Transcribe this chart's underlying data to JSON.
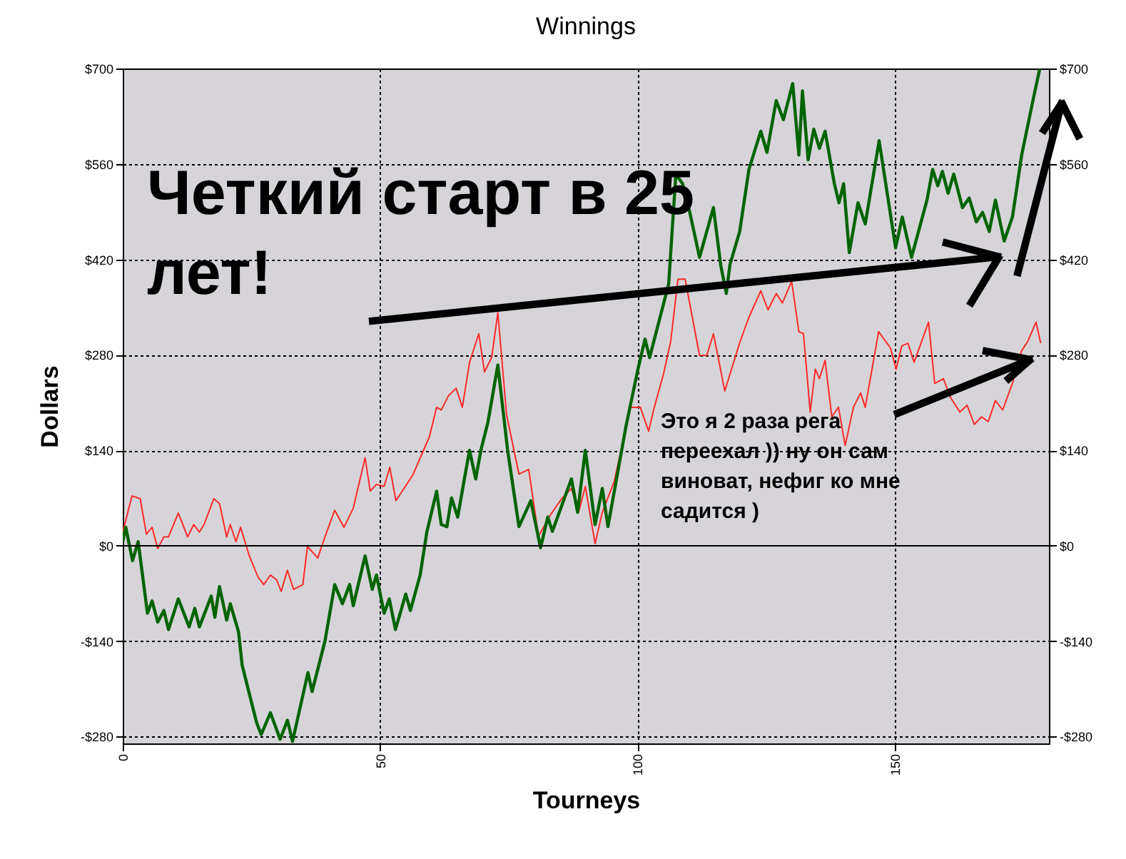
{
  "chart_data": {
    "type": "line",
    "title": "Winnings",
    "xlabel": "Tourneys",
    "ylabel": "Dollars",
    "annotations": [
      "Четкий старт в 25 лет!",
      "Это я 2 раза рега переехал )) ну он сам виноват, нефиг ко мне садится )"
    ],
    "xlim": [
      0,
      180
    ],
    "xticks": [
      0,
      50,
      100,
      150
    ],
    "ylim": [
      -290,
      700
    ],
    "yticks": [
      {
        "value": -280,
        "label": "-$280"
      },
      {
        "value": -140,
        "label": "-$140"
      },
      {
        "value": 0,
        "label": "$0"
      },
      {
        "value": 140,
        "label": "$140"
      },
      {
        "value": 280,
        "label": "$280"
      },
      {
        "value": 420,
        "label": "$420"
      },
      {
        "value": 560,
        "label": "$560"
      },
      {
        "value": 700,
        "label": "$700"
      }
    ],
    "y2lim": [
      -290,
      700
    ],
    "y2ticks": [
      {
        "value": -280,
        "label": "-$280"
      },
      {
        "value": -140,
        "label": "-$140"
      },
      {
        "value": 0,
        "label": "$0"
      },
      {
        "value": 140,
        "label": "$140"
      },
      {
        "value": 280,
        "label": "$280"
      },
      {
        "value": 420,
        "label": "$420"
      },
      {
        "value": 560,
        "label": "$560"
      },
      {
        "value": 700,
        "label": "$700"
      }
    ],
    "grid": true,
    "ref_lines": [
      {
        "axis": "y",
        "value": 0,
        "color": "#000000",
        "line_style": "solid"
      }
    ],
    "series": [
      {
        "color": "#ff2a2a",
        "x": [
          0,
          1.8,
          3.4,
          4.6,
          5.7,
          6.8,
          8,
          8.9,
          10.8,
          12.6,
          13.8,
          14.9,
          15.8,
          17.7,
          18.8,
          20.2,
          20.9,
          22,
          22.9,
          24.6,
          26.3,
          27.4,
          28.7,
          29.9,
          30.8,
          32,
          33.2,
          35,
          35.9,
          37.9,
          39.3,
          41.2,
          43,
          44.8,
          47.1,
          48.1,
          49.3,
          50.8,
          51.9,
          53.1,
          56.4,
          59.6,
          61,
          61.9,
          63.3,
          64.8,
          66,
          67.4,
          69.2,
          70.3,
          71.7,
          72.9,
          74.6,
          77,
          78.9,
          80.8,
          83.1,
          85.4,
          87.2,
          88.6,
          89.9,
          91.8,
          93.2,
          95.5,
          98.7,
          100.6,
          102.2,
          103.3,
          105.1,
          106.5,
          107.9,
          109.3,
          112.1,
          113.5,
          114.8,
          117,
          120,
          121.7,
          124,
          125.4,
          127,
          128.2,
          130,
          131.4,
          132.3,
          133.6,
          134.6,
          135.4,
          136.5,
          137.8,
          139.1,
          140.4,
          142,
          143.4,
          144.3,
          146.9,
          149.2,
          150.3,
          151.4,
          152.6,
          153.8,
          156.6,
          157.8,
          159.5,
          160.9,
          162.7,
          164.1,
          165.5,
          166.9,
          168.2,
          169.6,
          171,
          172.9,
          174.7,
          175.9,
          177.5,
          178.4
        ],
        "values": [
          20,
          73,
          69,
          17,
          27,
          -4,
          13,
          13,
          48,
          13,
          31,
          20,
          31,
          69,
          62,
          13,
          31,
          6,
          27,
          -15,
          -46,
          -57,
          -43,
          -50,
          -67,
          -36,
          -64,
          -57,
          -1,
          -18,
          13,
          52,
          27,
          55,
          129,
          80,
          90,
          87,
          115,
          66,
          104,
          160,
          203,
          199,
          220,
          231,
          203,
          269,
          311,
          255,
          276,
          342,
          192,
          105,
          112,
          14,
          45,
          70,
          84,
          49,
          87,
          3,
          49,
          94,
          203,
          203,
          168,
          203,
          252,
          300,
          391,
          391,
          279,
          279,
          311,
          227,
          300,
          335,
          374,
          346,
          370,
          356,
          388,
          314,
          311,
          196,
          259,
          245,
          272,
          189,
          203,
          147,
          203,
          224,
          203,
          314,
          290,
          259,
          293,
          297,
          269,
          328,
          238,
          245,
          217,
          196,
          206,
          178,
          189,
          182,
          213,
          199,
          238,
          286,
          300,
          328,
          297
        ]
      },
      {
        "color": "#006400",
        "x": [
          0,
          0.6,
          1.9,
          3,
          4.8,
          5.7,
          6.8,
          8,
          8.9,
          10.8,
          12.9,
          14,
          14.9,
          17.2,
          17.9,
          18.8,
          20.2,
          20.9,
          22.5,
          23.2,
          26,
          26.9,
          28.7,
          30.6,
          32,
          33,
          36,
          36.8,
          39.3,
          41.2,
          42.7,
          44.1,
          44.8,
          47.1,
          48.5,
          49.3,
          50.8,
          51.8,
          53,
          55,
          55.9,
          57.8,
          59.1,
          61,
          61.9,
          63,
          63.9,
          65.1,
          66.3,
          67.4,
          68.6,
          69.6,
          71,
          72.9,
          74.8,
          77,
          79.3,
          81.2,
          82.6,
          83.5,
          87.2,
          88.4,
          89.9,
          91.8,
          93.2,
          94.3,
          97.8,
          100.1,
          101.5,
          102.4,
          106.1,
          107.5,
          108.8,
          110.2,
          112.1,
          114.8,
          116.2,
          117.3,
          118,
          119.9,
          121.7,
          124,
          125.2,
          127,
          128.4,
          130.2,
          131.4,
          132.1,
          133.2,
          134.3,
          135.4,
          136.5,
          138.3,
          139.2,
          140.1,
          141.2,
          142.9,
          144.3,
          147,
          150.2,
          151.5,
          153.3,
          156.3,
          157.4,
          158.4,
          159.3,
          160.4,
          161.5,
          163.2,
          164.5,
          165.9,
          167.1,
          168.4,
          169.6,
          171.3,
          172.9,
          174.7,
          177,
          178.2
        ],
        "values": [
          6,
          27,
          -22,
          6,
          -99,
          -81,
          -112,
          -95,
          -123,
          -78,
          -119,
          -92,
          -119,
          -74,
          -105,
          -60,
          -109,
          -85,
          -126,
          -175,
          -259,
          -277,
          -245,
          -284,
          -256,
          -287,
          -186,
          -214,
          -140,
          -57,
          -85,
          -57,
          -88,
          -15,
          -64,
          -43,
          -99,
          -78,
          -123,
          -71,
          -95,
          -43,
          20,
          80,
          31,
          28,
          70,
          42,
          94,
          140,
          98,
          140,
          182,
          265,
          140,
          28,
          66,
          -3,
          42,
          21,
          98,
          49,
          140,
          31,
          84,
          28,
          175,
          258,
          303,
          276,
          384,
          545,
          531,
          489,
          423,
          496,
          412,
          370,
          412,
          461,
          552,
          608,
          577,
          653,
          625,
          678,
          573,
          667,
          566,
          611,
          583,
          608,
          531,
          503,
          531,
          430,
          503,
          472,
          594,
          437,
          482,
          423,
          507,
          552,
          528,
          549,
          517,
          545,
          496,
          510,
          475,
          489,
          461,
          507,
          447,
          482,
          573,
          657,
          699
        ]
      }
    ]
  }
}
